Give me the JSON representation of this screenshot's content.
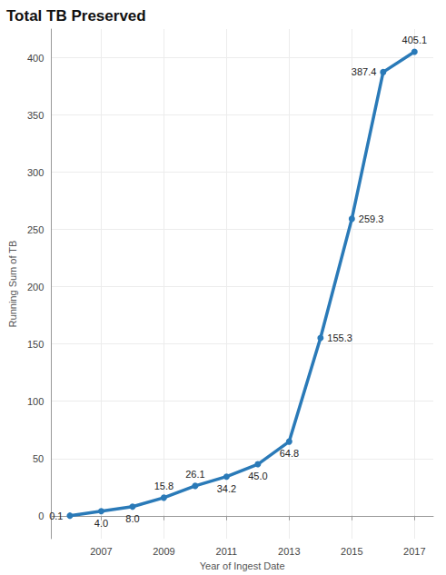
{
  "chart_data": {
    "type": "line",
    "title": "Total TB Preserved",
    "x_label": "Year of Ingest Date",
    "y_label": "Running Sum of TB",
    "x": [
      2006,
      2007,
      2008,
      2009,
      2010,
      2011,
      2012,
      2013,
      2014,
      2015,
      2016,
      2017
    ],
    "values": [
      0.1,
      4.0,
      8.0,
      15.8,
      26.1,
      34.2,
      45.0,
      64.8,
      155.3,
      259.3,
      387.4,
      405.1
    ],
    "value_labels": [
      "0.1",
      "4.0",
      "8.0",
      "15.8",
      "26.1",
      "34.2",
      "45.0",
      "64.8",
      "155.3",
      "259.3",
      "387.4",
      "405.1"
    ],
    "color": "#2a7ab8",
    "xlim": [
      2005.4,
      2017.6
    ],
    "xticks": [
      2007,
      2009,
      2011,
      2013,
      2015,
      2017
    ],
    "ylim": [
      -20,
      425
    ],
    "yticks": [
      0,
      50,
      100,
      150,
      200,
      250,
      300,
      350,
      400
    ],
    "grid": true,
    "data_labels": true,
    "marker": "circle"
  }
}
